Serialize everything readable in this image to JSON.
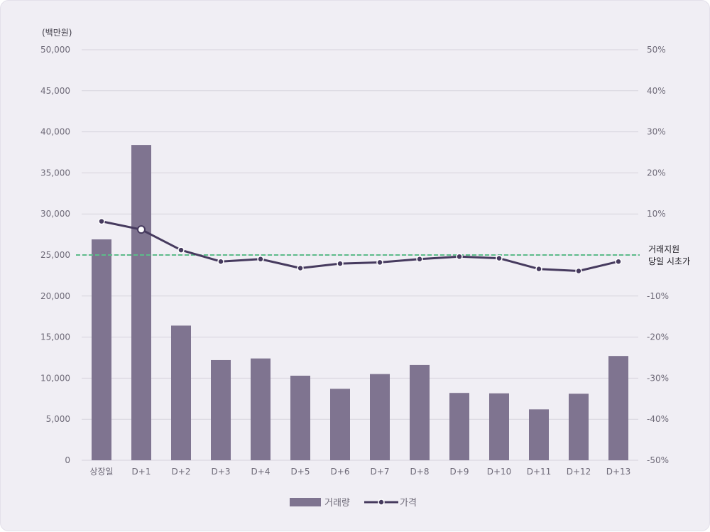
{
  "chart_data": {
    "type": "bar+line",
    "y_unit_label": "(백만원)",
    "categories": [
      "상장일",
      "D+1",
      "D+2",
      "D+3",
      "D+4",
      "D+5",
      "D+6",
      "D+7",
      "D+8",
      "D+9",
      "D+10",
      "D+11",
      "D+12",
      "D+13"
    ],
    "series": [
      {
        "name": "거래량",
        "type": "bar",
        "axis": "left",
        "color": "#7f7490",
        "values": [
          26900,
          38400,
          16400,
          12200,
          12400,
          10300,
          8700,
          10500,
          11600,
          8200,
          8150,
          6200,
          8100,
          12700
        ]
      },
      {
        "name": "가격",
        "type": "line",
        "axis": "right",
        "color": "#463a5e",
        "values": [
          8.2,
          6.2,
          1.2,
          -1.6,
          -1.0,
          -3.2,
          -2.1,
          -1.8,
          -1.0,
          -0.4,
          -0.8,
          -3.4,
          -3.9,
          -1.6
        ]
      }
    ],
    "left_axis": {
      "min": 0,
      "max": 50000,
      "step": 5000,
      "ticks": [
        "0",
        "5,000",
        "10,000",
        "15,000",
        "20,000",
        "25,000",
        "30,000",
        "35,000",
        "40,000",
        "45,000",
        "50,000"
      ]
    },
    "right_axis": {
      "min": -50,
      "max": 50,
      "step": 10,
      "ticks": [
        "-50%",
        "-40%",
        "-30%",
        "-20%",
        "-10%",
        "",
        "10%",
        "20%",
        "30%",
        "40%",
        "50%"
      ]
    },
    "reference_line": {
      "value": 0,
      "axis": "right",
      "color": "#5dbb8a",
      "label_line1": "거래지원",
      "label_line2": "당일 시초가"
    },
    "grid": true,
    "legend": {
      "position": "bottom-center",
      "bar_label": "거래량",
      "line_label": "가격"
    }
  }
}
